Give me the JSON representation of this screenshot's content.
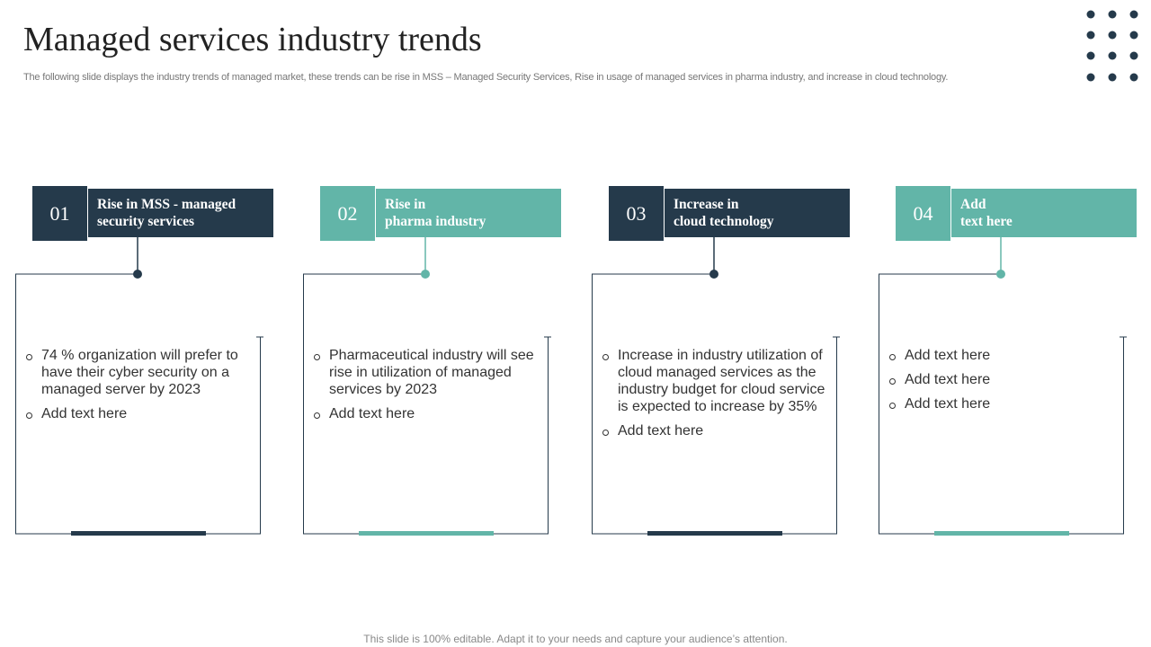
{
  "header": {
    "title": "Managed services industry trends",
    "subtitle": "The following slide displays the industry trends of managed market, these trends can be rise in MSS – Managed Security Services, Rise in usage of managed services in pharma industry, and increase in cloud technology."
  },
  "cards": [
    {
      "number": "01",
      "title": [
        "Rise in MSS - managed",
        "security services"
      ],
      "bullets": [
        "74 % organization will prefer to have their cyber security on a managed server by 2023",
        "Add text here"
      ]
    },
    {
      "number": "02",
      "title": [
        "Rise in",
        "pharma industry"
      ],
      "bullets": [
        "Pharmaceutical industry will see rise in utilization of managed services by 2023",
        "Add text here"
      ]
    },
    {
      "number": "03",
      "title": [
        "Increase in",
        "cloud technology"
      ],
      "bullets": [
        "Increase in industry utilization of cloud managed services as the industry budget for cloud service is expected to increase by 35%",
        "Add text here"
      ]
    },
    {
      "number": "04",
      "title": [
        "Add",
        "text here"
      ],
      "bullets": [
        "Add text here",
        "Add text here",
        "Add text here"
      ]
    }
  ],
  "footer": "This slide is 100% editable. Adapt it to your needs and capture your audience’s attention."
}
